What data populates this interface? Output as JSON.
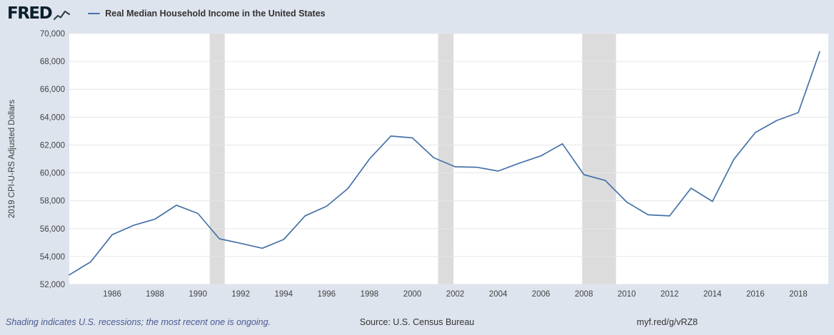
{
  "header": {
    "logo": "FRED",
    "legend_label": "Real Median Household Income in the United States"
  },
  "chart_data": {
    "type": "line",
    "title": "Real Median Household Income in the United States",
    "xlabel": "",
    "ylabel": "2019 CPI-U-RS Adjusted Dollars",
    "x": [
      1984,
      1985,
      1986,
      1987,
      1988,
      1989,
      1990,
      1991,
      1992,
      1993,
      1994,
      1995,
      1996,
      1997,
      1998,
      1999,
      2000,
      2001,
      2002,
      2003,
      2004,
      2005,
      2006,
      2007,
      2008,
      2009,
      2010,
      2011,
      2012,
      2013,
      2014,
      2015,
      2016,
      2017,
      2018,
      2019
    ],
    "values": [
      52679,
      53616,
      55565,
      56237,
      56682,
      57683,
      57087,
      55273,
      54944,
      54594,
      55221,
      56921,
      57604,
      58882,
      60995,
      62641,
      62512,
      61083,
      60440,
      60406,
      60130,
      60705,
      61219,
      62090,
      59877,
      59458,
      57904,
      56991,
      56912,
      58904,
      57952,
      60987,
      62898,
      63761,
      64324,
      68703
    ],
    "xlim": [
      1984,
      2019.4
    ],
    "ylim": [
      52000,
      70000
    ],
    "ytick_step": 2000,
    "xticks": [
      1986,
      1988,
      1990,
      1992,
      1994,
      1996,
      1998,
      2000,
      2002,
      2004,
      2006,
      2008,
      2010,
      2012,
      2014,
      2016,
      2018
    ],
    "recessions": [
      [
        1990.55,
        1991.25
      ],
      [
        2001.2,
        2001.92
      ],
      [
        2007.92,
        2009.5
      ]
    ],
    "line_color": "#4572a7",
    "recession_color": "#dcdcdc",
    "grid_color": "#e6e6e6",
    "plot_background": "#ffffff",
    "page_background": "#dee4ee",
    "legend_position": "top-left",
    "grid": "horizontal-only"
  },
  "footer": {
    "note": "Shading indicates U.S. recessions; the most recent one is ongoing.",
    "source": "Source: U.S. Census Bureau",
    "link": "myf.red/g/vRZ8"
  }
}
